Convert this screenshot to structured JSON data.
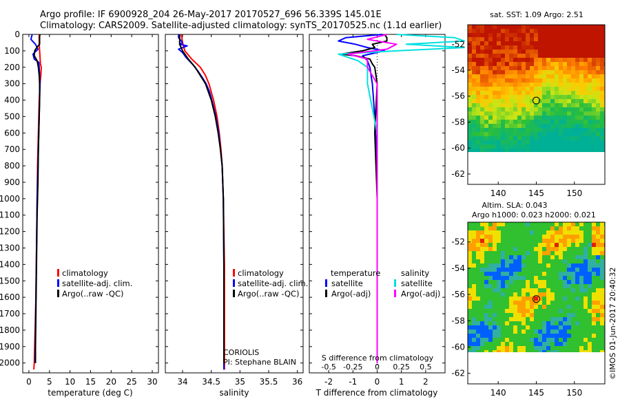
{
  "title_line1": "Argo profile: IF 6900928_204 26-May-2017 20170527_696 56.339S 145.01E",
  "title_line2": "Climatology: CARS2009. Satellite-adjusted climatology: synTS_20170525.nc (1.1d earlier)",
  "colors": {
    "climatology": "#ff0000",
    "satellite_adj": "#0000ff",
    "argo": "#000000",
    "s_satellite": "#00e0e0",
    "s_argo": "#ff00ff"
  },
  "chart_data": [
    {
      "type": "line",
      "name": "temperature",
      "xlabel": "temperature (deg C)",
      "ylabel": "",
      "xlim": [
        -1.5,
        31.5
      ],
      "ylim": [
        2060,
        0
      ],
      "xticks": [
        "0",
        "5",
        "10",
        "15",
        "20",
        "25",
        "30"
      ],
      "yticks": [
        "0",
        "100",
        "200",
        "300",
        "400",
        "500",
        "600",
        "700",
        "800",
        "900",
        "1000",
        "1100",
        "1200",
        "1300",
        "1400",
        "1500",
        "1600",
        "1700",
        "1800",
        "1900",
        "2000"
      ],
      "legend": [
        "climatology",
        "satellite-adj. clim.",
        "Argo(..raw -QC)"
      ],
      "series": [
        {
          "name": "climatology",
          "depth": [
            0,
            60,
            100,
            140,
            180,
            200,
            250,
            300,
            400,
            600,
            800,
            1000,
            1200,
            1400,
            1600,
            1800,
            2000,
            2040
          ],
          "values": [
            2.5,
            2.5,
            2.6,
            2.7,
            2.8,
            3.0,
            2.9,
            2.7,
            2.5,
            2.3,
            2.1,
            2.0,
            1.9,
            1.8,
            1.7,
            1.5,
            1.3,
            1.2
          ]
        },
        {
          "name": "satellite-adj. clim.",
          "depth": [
            0,
            30,
            60,
            90,
            120,
            150,
            170,
            200,
            250,
            300,
            400,
            600,
            800,
            1000,
            1400,
            1800,
            2000
          ],
          "values": [
            0.8,
            0.5,
            1.6,
            2.2,
            1.0,
            1.3,
            2.4,
            2.5,
            2.6,
            2.7,
            2.6,
            2.4,
            2.2,
            2.0,
            1.8,
            1.6,
            1.5
          ]
        },
        {
          "name": "Argo(..raw -QC)",
          "depth": [
            0,
            10,
            60,
            80,
            100,
            130,
            160,
            200,
            250,
            300,
            400,
            500,
            700,
            900,
            1100,
            1300,
            1500,
            1700,
            1900,
            2000
          ],
          "values": [
            2.7,
            2.6,
            2.6,
            1.9,
            1.4,
            1.3,
            2.0,
            2.3,
            2.5,
            2.6,
            2.6,
            2.5,
            2.3,
            2.2,
            2.0,
            1.9,
            1.8,
            1.7,
            1.6,
            1.6
          ]
        }
      ]
    },
    {
      "type": "line",
      "name": "salinity",
      "xlabel": "salinity",
      "ylabel": "",
      "xlim": [
        33.7,
        36.1
      ],
      "ylim": [
        2060,
        0
      ],
      "xticks": [
        "34",
        "34.5",
        "35",
        "35.5",
        "36"
      ],
      "legend": [
        "climatology",
        "satellite-adj. clim.",
        "Argo(..raw -QC)"
      ],
      "annotation": [
        "CORIOLIS",
        "PI: Stephane BLAIN"
      ],
      "series": [
        {
          "name": "climatology",
          "depth": [
            0,
            50,
            100,
            150,
            200,
            250,
            300,
            400,
            500,
            600,
            700,
            800,
            1000,
            1400,
            2040
          ],
          "values": [
            33.98,
            34.0,
            34.04,
            34.16,
            34.31,
            34.4,
            34.46,
            34.54,
            34.6,
            34.64,
            34.67,
            34.69,
            34.71,
            34.73,
            34.73
          ]
        },
        {
          "name": "satellite-adj. clim.",
          "depth": [
            0,
            20,
            50,
            60,
            70,
            90,
            110,
            140,
            180,
            220,
            260,
            300,
            350,
            400,
            500,
            600,
            700,
            800,
            1000,
            1400,
            2040
          ],
          "values": [
            33.93,
            33.93,
            34.0,
            33.95,
            34.08,
            33.93,
            34.0,
            34.06,
            34.17,
            34.26,
            34.34,
            34.41,
            34.47,
            34.51,
            34.58,
            34.63,
            34.66,
            34.69,
            34.71,
            34.72,
            34.72
          ]
        },
        {
          "name": "Argo(..raw -QC)",
          "depth": [
            0,
            60,
            100,
            150,
            200,
            300,
            400,
            500,
            600,
            700,
            800,
            1000,
            1400,
            2000
          ],
          "values": [
            33.95,
            33.95,
            34.0,
            34.1,
            34.22,
            34.4,
            34.5,
            34.57,
            34.62,
            34.66,
            34.69,
            34.71,
            34.72,
            34.72
          ]
        }
      ]
    },
    {
      "type": "line",
      "name": "difference",
      "xlabel": "T difference from climatology",
      "xlabel_top": "S difference from climatology",
      "xlim": [
        -2.8,
        2.8
      ],
      "ylim": [
        2060,
        0
      ],
      "xticks": [
        "-2",
        "-1",
        "0",
        "1",
        "2"
      ],
      "xticks_top": [
        "-0.5",
        "-0.25",
        "0",
        "0.25",
        "0.5"
      ],
      "legend_t_heading": "temperature",
      "legend_s_heading": "salinity",
      "legend_t": [
        "satellite",
        "Argo(-adj)"
      ],
      "legend_s": [
        "satellite",
        "Argo(-adj)"
      ],
      "series": [
        {
          "name": "T satellite",
          "depth": [
            0,
            20,
            40,
            60,
            80,
            100,
            130,
            160,
            200,
            300,
            500,
            800,
            1200,
            1600,
            2000
          ],
          "values": [
            0.2,
            -1.3,
            -1.6,
            -0.9,
            -0.4,
            0.3,
            -0.6,
            -0.4,
            -0.3,
            -0.2,
            -0.1,
            0.0,
            0.0,
            0.0,
            0.0
          ]
        },
        {
          "name": "T Argo(-adj)",
          "depth": [
            0,
            20,
            40,
            60,
            80,
            100,
            120,
            130,
            150,
            180,
            200,
            300,
            600,
            1000,
            1600,
            2000
          ],
          "values": [
            0.3,
            0.4,
            0.4,
            -0.2,
            -0.1,
            -0.6,
            -1.5,
            -0.9,
            -0.3,
            -0.2,
            -0.1,
            0.0,
            -0.1,
            0.0,
            0.0,
            0.0
          ]
        },
        {
          "name": "S satellite",
          "depth": [
            0,
            20,
            40,
            60,
            80,
            100,
            120,
            140,
            160,
            200,
            300,
            600,
            1000,
            1600,
            2000
          ],
          "values": [
            0.2,
            0.8,
            0.9,
            0.3,
            0.9,
            0.2,
            -0.4,
            -0.3,
            -0.2,
            -0.1,
            -0.1,
            0.0,
            0.0,
            0.0,
            0.0
          ]
        },
        {
          "name": "S Argo(-adj)",
          "depth": [
            0,
            30,
            60,
            90,
            120,
            150,
            200,
            300,
            600,
            1000,
            1600,
            2000
          ],
          "values": [
            0.1,
            -0.1,
            0.2,
            0.1,
            -0.3,
            -0.1,
            -0.1,
            0.0,
            0.0,
            0.0,
            0.0,
            0.0
          ]
        }
      ]
    },
    {
      "type": "heatmap",
      "name": "sst_map",
      "title": "sat. SST: 1.09 Argo: 2.51",
      "xticks": [
        "140",
        "145",
        "150"
      ],
      "yticks": [
        "-52",
        "-54",
        "-56",
        "-58",
        "-60",
        "-62"
      ],
      "xlim": [
        136,
        154
      ],
      "ylim": [
        -62.8,
        -50.5
      ],
      "marker": {
        "lon": 145.0,
        "lat": -56.34
      }
    },
    {
      "type": "heatmap",
      "name": "sla_map",
      "title": "Altim. SLA: 0.043",
      "subtitle": "Argo h1000: 0.023 h2000: 0.021",
      "xticks": [
        "140",
        "145",
        "150"
      ],
      "yticks": [
        "-52",
        "-54",
        "-56",
        "-58",
        "-60",
        "-62"
      ],
      "xlim": [
        136,
        154
      ],
      "ylim": [
        -62.8,
        -50.5
      ],
      "marker": {
        "lon": 145.0,
        "lat": -56.34
      }
    }
  ],
  "side_stamp": "©IMOS 01-Jun-2017 20:40:32"
}
